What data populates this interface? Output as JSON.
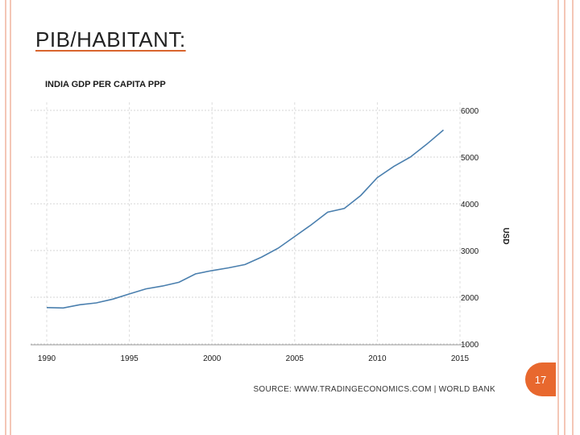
{
  "slide": {
    "title": "PIB/HABITANT:",
    "page_number": "17",
    "accent_color": "#e8682e",
    "frame_color": "#f4c6b6"
  },
  "chart_data": {
    "type": "line",
    "title": "INDIA GDP PER CAPITA PPP",
    "ylabel": "USD",
    "xlabel": "",
    "xlim": [
      1990,
      2015
    ],
    "ylim": [
      1000,
      6000
    ],
    "x_ticks": [
      1990,
      1995,
      2000,
      2005,
      2010,
      2015
    ],
    "y_ticks": [
      1000,
      2000,
      3000,
      4000,
      5000,
      6000
    ],
    "series": [
      {
        "name": "India GDP per capita PPP",
        "color": "#4a7fae",
        "x": [
          1990,
          1991,
          1992,
          1993,
          1994,
          1995,
          1996,
          1997,
          1998,
          1999,
          2000,
          2001,
          2002,
          2003,
          2004,
          2005,
          2006,
          2007,
          2008,
          2009,
          2010,
          2011,
          2012,
          2013,
          2014
        ],
        "y": [
          1780,
          1770,
          1840,
          1880,
          1960,
          2070,
          2180,
          2240,
          2320,
          2500,
          2570,
          2630,
          2700,
          2860,
          3050,
          3300,
          3550,
          3820,
          3900,
          4180,
          4560,
          4800,
          5000,
          5280,
          5580
        ]
      }
    ],
    "source": "SOURCE: WWW.TRADINGECONOMICS.COM | WORLD BANK",
    "grid": "vertical-dashed"
  }
}
